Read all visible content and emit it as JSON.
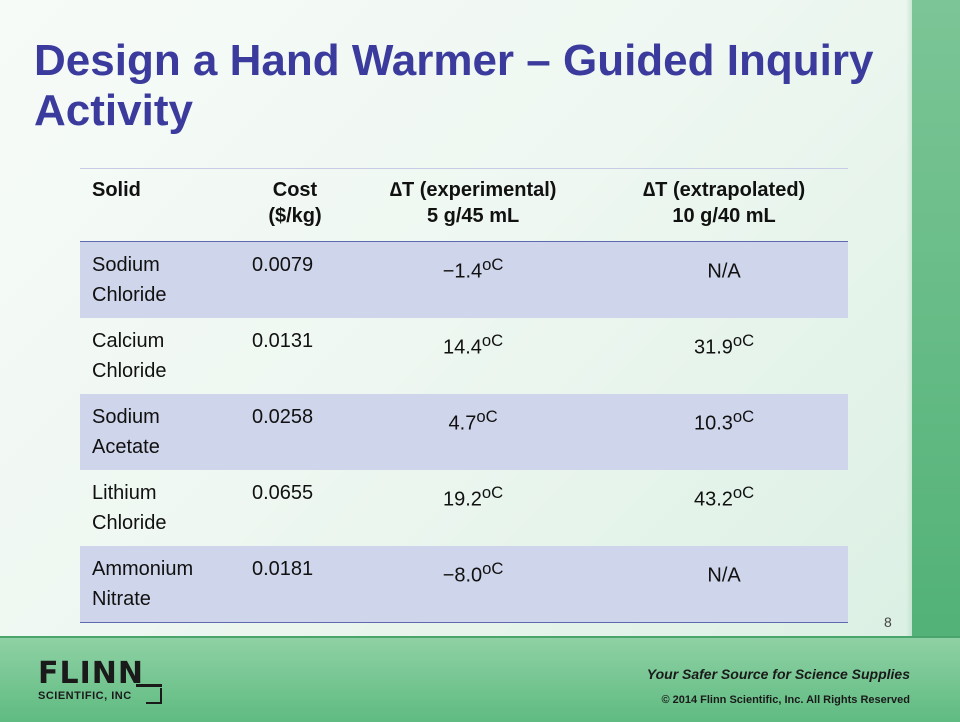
{
  "slide": {
    "title": "Design a Hand Warmer – Guided Inquiry Activity",
    "page_number": "8"
  },
  "table": {
    "headers": [
      {
        "line1": "Solid",
        "line2": ""
      },
      {
        "line1": "Cost",
        "line2": "($/kg)"
      },
      {
        "line1": "∆T (experimental)",
        "line2": "5 g/45 mL"
      },
      {
        "line1": "∆T (extrapolated)",
        "line2": "10 g/40 mL"
      }
    ],
    "rows": [
      {
        "solid_line1": "Sodium",
        "solid_line2": "Chloride",
        "cost": "0.0079",
        "dt_exp": "−1.4",
        "dt_ext": "N/A",
        "dt_exp_unit": "oC",
        "dt_ext_unit": ""
      },
      {
        "solid_line1": "Calcium",
        "solid_line2": "Chloride",
        "cost": "0.0131",
        "dt_exp": "14.4",
        "dt_ext": "31.9",
        "dt_exp_unit": "oC",
        "dt_ext_unit": "oC"
      },
      {
        "solid_line1": "Sodium",
        "solid_line2": "Acetate",
        "cost": "0.0258",
        "dt_exp": "4.7",
        "dt_ext": "10.3",
        "dt_exp_unit": "oC",
        "dt_ext_unit": "oC"
      },
      {
        "solid_line1": "Lithium",
        "solid_line2": "Chloride",
        "cost": "0.0655",
        "dt_exp": "19.2",
        "dt_ext": "43.2",
        "dt_exp_unit": "oC",
        "dt_ext_unit": "oC"
      },
      {
        "solid_line1": "Ammonium",
        "solid_line2": "Nitrate",
        "cost": "0.0181",
        "dt_exp": "−8.0",
        "dt_ext": "N/A",
        "dt_exp_unit": "oC",
        "dt_ext_unit": ""
      }
    ]
  },
  "footer": {
    "logo_main": "FLINN",
    "logo_sub": "SCIENTIFIC, INC",
    "tagline": "Your Safer Source for Science Supplies",
    "copyright": "© 2014 Flinn Scientific, Inc. All Rights Reserved"
  },
  "colors": {
    "title": "#3b3b9e",
    "row_shade": "#cfd5ea",
    "rule": "#5e6ab0",
    "footer_green": "#5fbb81"
  }
}
